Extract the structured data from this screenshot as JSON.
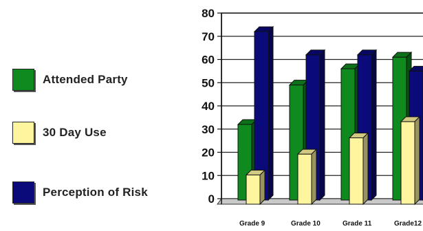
{
  "chart_data": {
    "type": "bar",
    "categories": [
      "Grade 9",
      "Grade 10",
      "Grade 11",
      "Grade12"
    ],
    "series": [
      {
        "name": "Attended Party",
        "values": [
          32,
          49,
          56,
          61
        ],
        "color": "#0f8a1e"
      },
      {
        "name": "30 Day Use",
        "values": [
          12,
          21,
          28,
          35
        ],
        "color": "#fff59e"
      },
      {
        "name": "Perception of Risk",
        "values": [
          72,
          62,
          62,
          55
        ],
        "color": "#0a0a7a"
      }
    ],
    "ylim": [
      0,
      80
    ],
    "yticks": [
      0,
      10,
      20,
      30,
      40,
      50,
      60,
      70,
      80
    ],
    "grid": true,
    "legend_position": "left"
  }
}
